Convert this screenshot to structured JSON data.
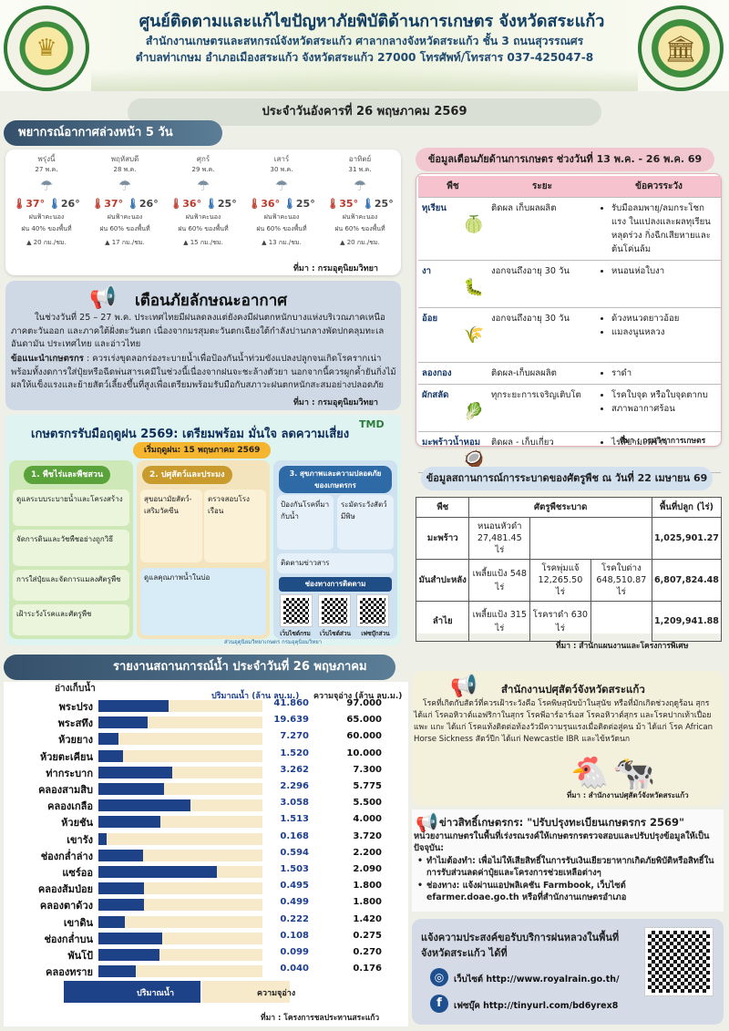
{
  "header": {
    "title": "ศูนย์ติดตามและแก้ไขปัญหาภัยพิบัติด้านการเกษตร จังหวัดสระแก้ว",
    "line1": "สำนักงานเกษตรและสหกรณ์จังหวัดสระแก้ว ศาลากลางจังหวัดสระแก้ว ชั้น 3 ถนนสุวรรณศร",
    "line2": "ตำบลท่าเกษม อำเภอเมืองสระแก้ว จังหวัดสระแก้ว 27000 โทรศัพท์/โทรสาร 037-425047-8",
    "seal_left_text": "สำนักงานเกษตรและสหกรณ์ MINISTRY OF AGRICULTURE AND COOPERATIVES",
    "date": "ประจำวันอังคารที่ 26 พฤษภาคม 2569"
  },
  "forecast": {
    "title": "พยากรณ์อากาศล่วงหน้า 5 วัน",
    "source": "ที่มา : กรมอุตุนิยมวิทยา",
    "days": [
      {
        "name": "พรุ่งนี้",
        "date": "27 พ.ค.",
        "hi": "37°",
        "lo": "26°",
        "desc1": "ฝนฟ้าคะนอง",
        "desc2": "ฝน 40% ของพื้นที่",
        "wind": "20 กม./ชม."
      },
      {
        "name": "พฤหัสบดี",
        "date": "28 พ.ค.",
        "hi": "37°",
        "lo": "26°",
        "desc1": "ฝนฟ้าคะนอง",
        "desc2": "ฝน 60% ของพื้นที่",
        "wind": "17 กม./ชม."
      },
      {
        "name": "ศุกร์",
        "date": "29 พ.ค.",
        "hi": "36°",
        "lo": "25°",
        "desc1": "ฝนฟ้าคะนอง",
        "desc2": "ฝน 60% ของพื้นที่",
        "wind": "15 กม./ชม."
      },
      {
        "name": "เสาร์",
        "date": "30 พ.ค.",
        "hi": "36°",
        "lo": "25°",
        "desc1": "ฝนฟ้าคะนอง",
        "desc2": "ฝน 60% ของพื้นที่",
        "wind": "13 กม./ชม."
      },
      {
        "name": "อาทิตย์",
        "date": "31 พ.ค.",
        "hi": "35°",
        "lo": "25°",
        "desc1": "ฝนฟ้าคะนอง",
        "desc2": "ฝน 60% ของพื้นที่",
        "wind": "20 กม./ชม."
      }
    ]
  },
  "warning": {
    "title": "เตือนภัยลักษณะอากาศ",
    "p1": "ในช่วงวันที่ 25 – 27 พ.ค. ประเทศไทยมีฝนลดลงแต่ยังคงมีฝนตกหนักบางแห่งบริเวณภาคเหนือ ภาคตะวันออก และภาคใต้ฝั่งตะวันตก เนื่องจากมรสุมตะวันตกเฉียงใต้กำลังปานกลางพัดปกคลุมทะเลอันดามัน ประเทศไทย และอ่าวไทย",
    "p2_label": "ข้อแนะนำเกษตรกร",
    "p2": " : ควรเร่งขุดลอกร่องระบายน้ำเพื่อป้องกันน้ำท่วมขังแปลงปลูกจนเกิดโรครากเน่า พร้อมทั้งงดการใส่ปุ๋ยหรือฉีดพ่นสารเคมีในช่วงนี้เนื่องจากฝนจะชะล้างตัวยา นอกจากนี้ควรผูกค้ำยันกิ่งไม้ผลให้แข็งแรงและย้ายสัตว์เลี้ยงขึ้นที่สูงเพื่อเตรียมพร้อมรับมือกับสภาวะฝนตกหนักสะสมอย่างปลอดภัย",
    "source": "ที่มา : กรมอุตุนิยมวิทยา"
  },
  "infographic": {
    "title": "เกษตรกรรับมือฤดูฝน 2569: เตรียมพร้อม มั่นใจ ลดความเสี่ยง",
    "start": "เริ่มฤดูฝน: 15 พฤษภาคม 2569",
    "s1": "1. พืชไร่และพืชสวน",
    "s2": "2. ปศุสัตว์และประมง",
    "s3": "3. สุขภาพและความปลอดภัยของเกษตรกร",
    "s1a": "ดูแลระบบระบายน้ำและโครงสร้าง",
    "s1b": "จัดการดินและวัชพืชอย่างถูกวิธี",
    "s1c": "การใส่ปุ๋ยและจัดการแมลงศัตรูพืช",
    "s1d": "เฝ้าระวังโรคและศัตรูพืช",
    "s2a": "สุขอนามัยสัตว์-เสริมวัคซีน",
    "s2b": "ตรวจสอบโรงเรือน",
    "s2c": "ดูแลคุณภาพน้ำในบ่อ",
    "s3a": "ป้องกันโรคที่มากับน้ำ",
    "s3b": "ระมัดระวังสัตว์มีพิษ",
    "s3c": "ติดตามข่าวสาร",
    "contact": "ช่องทางการติดตาม",
    "qr1": "เว็บไซต์กรม",
    "qr2": "เว็บไซต์ส่วน",
    "qr3": "เฟซบุ๊กส่วน",
    "foot": "ส่วนอุตุนิยมวิทยาเกษตร กรมอุตุนิยมวิทยา",
    "logo": "TMD"
  },
  "alert": {
    "title": "ข้อมูลเตือนภัยด้านการเกษตร ช่วงวันที่ 13 พ.ค. - 26 พ.ค. 69",
    "headers": [
      "พืช",
      "ระยะ",
      "ข้อควรระวัง"
    ],
    "rows": [
      {
        "crop": "ทุเรียน",
        "stage": "ติดผล เก็บผลผลิต",
        "cautions": [
          "รับมือลมพายุ/ลมกระโชกแรง ในแปลงและผลทุเรียนหลุดร่วง กิ่งฉีกเสียหายและต้นโค่นล้ม"
        ]
      },
      {
        "crop": "งา",
        "stage": "งอกจนถึงอายุ 30 วัน",
        "cautions": [
          "หนอนห่อใบงา"
        ]
      },
      {
        "crop": "อ้อย",
        "stage": "งอกจนถึงอายุ 30 วัน",
        "cautions": [
          "ด้วงหนวดยาวอ้อย",
          "แมลงนูนหลวง"
        ]
      },
      {
        "crop": "ลองกอง",
        "stage": "ติดผล-เก็บผลผลิต",
        "cautions": [
          "ราดำ"
        ]
      },
      {
        "crop": "ผักสลัด",
        "stage": "ทุกระยะการเจริญเติบโต",
        "cautions": [
          "โรคใบจุด หรือใบจุดตากบ",
          "สภาพอากาศร้อน"
        ]
      },
      {
        "crop": "มะพร้าวน้ำหอม",
        "stage": "ติดผล - เก็บเกี่ยว",
        "cautions": [
          "ไรสี่ขามะพร้าว"
        ]
      }
    ],
    "source": "ที่มา : กรมวิชาการเกษตร"
  },
  "pest": {
    "title": "ข้อมูลสถานการณ์การระบาดของศัตรูพืช ณ วันที่ 22 เมษายน 69",
    "headers": [
      "พืช",
      "ศัตรูพืชระบาด",
      "พื้นที่ปลูก (ไร่)"
    ],
    "rows": [
      {
        "crop": "มะพร้าว",
        "pests": [
          "หนอนหัวดำ 27,481.45 ไร่"
        ],
        "area": "1,025,901.27"
      },
      {
        "crop": "มันสำปะหลัง",
        "pests": [
          "เพลี้ยแป้ง 548 ไร่",
          "โรคพุ่มแจ้ 12,265.50 ไร่",
          "โรคใบด่าง 648,510.87 ไร่"
        ],
        "area": "6,807,824.48"
      },
      {
        "crop": "ลำไย",
        "pests": [
          "เพลี้ยแป้ง 315 ไร่",
          "โรคราดำ 630 ไร่"
        ],
        "area": "1,209,941.88"
      }
    ],
    "source": "ที่มา : สำนักแผนงานและโครงการพิเศษ"
  },
  "water": {
    "title": "รายงานสถานการณ์น้ำ ประจำวันที่ 26 พฤษภาคม 2569",
    "col_name": "อ่างเก็บน้ำ",
    "col_qty": "ปริมาณน้ำ (ล้าน ลบ.ม.)",
    "col_cap": "ความจุอ่าง (ล้าน ลบ.ม.)",
    "legend_qty": "ปริมาณน้ำ",
    "legend_cap": "ความจุอ่าง",
    "source": "ที่มา : โครงการชลประทานสระแก้ว",
    "rows": [
      {
        "name": "พระปรง",
        "qty": "41.860",
        "cap": "97.000",
        "pct": 0.43
      },
      {
        "name": "พระสทึง",
        "qty": "19.639",
        "cap": "65.000",
        "pct": 0.3
      },
      {
        "name": "ห้วยยาง",
        "qty": "7.270",
        "cap": "60.000",
        "pct": 0.12
      },
      {
        "name": "ห้วยตะเคียน",
        "qty": "1.520",
        "cap": "10.000",
        "pct": 0.15
      },
      {
        "name": "ท่ากระบาก",
        "qty": "3.262",
        "cap": "7.300",
        "pct": 0.45
      },
      {
        "name": "คลองสามสิบ",
        "qty": "2.296",
        "cap": "5.775",
        "pct": 0.4
      },
      {
        "name": "คลองเกลือ",
        "qty": "3.058",
        "cap": "5.500",
        "pct": 0.56
      },
      {
        "name": "ห้วยชัน",
        "qty": "1.513",
        "cap": "4.000",
        "pct": 0.38
      },
      {
        "name": "เขารัง",
        "qty": "0.168",
        "cap": "3.720",
        "pct": 0.05
      },
      {
        "name": "ช่องกล่ำล่าง",
        "qty": "0.594",
        "cap": "2.200",
        "pct": 0.27
      },
      {
        "name": "แซร์ออ",
        "qty": "1.503",
        "cap": "2.090",
        "pct": 0.72
      },
      {
        "name": "คลองส้มป่อย",
        "qty": "0.495",
        "cap": "1.800",
        "pct": 0.28
      },
      {
        "name": "คลองตาด้วง",
        "qty": "0.499",
        "cap": "1.800",
        "pct": 0.28
      },
      {
        "name": "เขาดิน",
        "qty": "0.222",
        "cap": "1.420",
        "pct": 0.16
      },
      {
        "name": "ช่องกล่ำบน",
        "qty": "0.108",
        "cap": "0.275",
        "pct": 0.39
      },
      {
        "name": "พันโป้",
        "qty": "0.099",
        "cap": "0.270",
        "pct": 0.37
      },
      {
        "name": "คลองทราย",
        "qty": "0.040",
        "cap": "0.176",
        "pct": 0.23
      }
    ]
  },
  "livestock": {
    "title": "สำนักงานปศุสัตว์จังหวัดสระแก้ว",
    "body": "โรคที่เกิดกับสัตว์ที่ควรเฝ้าระวังคือ โรคพิษสุนัขบ้าในสุนัข หรือที่มักเกิดช่วงฤดูร้อน สุกร ได้แก่ โรคอหิวาต์แอฟริกาในสุกร โรคพีอาร์อาร์เอส โรคอหิวาต์สุกร และโรคปากเท้าเปื่อย แพะ แกะ ได้แก่ โรคแท้งติดต่อท้องวัวมีความรุนแรงเมื่อติดต่อสู่คน ม้า ได้แก่ โรค African Horse Sickness สัตว์ปีก ได้แก่ Newcastle IBR และไข้หวัดนก",
    "source": "ที่มา : สำนักงานปศุสัตว์จังหวัดสระแก้ว"
  },
  "news": {
    "title": "ข่าวสิทธิ์เกษตรกร: \"ปรับปรุงทะเบียนเกษตรกร 2569\"",
    "intro": "หน่วยงานเกษตรในพื้นที่เร่งรณรงค์ให้เกษตรกรตรวจสอบและปรับปรุงข้อมูลให้เป็นปัจจุบัน:",
    "b1": "ทำไมต้องทำ: เพื่อไม่ให้เสียสิทธิ์ในการรับเงินเยียวยาหากเกิดภัยพิบัติหรือสิทธิ์ในการรับส่วนลดค่าปุ๋ยและโครงการช่วยเหลือต่างๆ",
    "b2": "ช่องทาง: แจ้งผ่านแอปพลิเคชัน Farmbook, เว็บไซต์ efarmer.doae.go.th หรือที่สำนักงานเกษตรอำเภอ"
  },
  "rain": {
    "title": "แจ้งความประสงค์ขอรับบริการฝนหลวงในพื้นที่จังหวัดสระแก้ว ได้ที่",
    "web": "เว็บไซต์ http://www.royalrain.go.th/",
    "fb": "เฟซบุ๊ค http://tinyurl.com/bd6yrex8"
  },
  "colors": {
    "navy": "#1e4287",
    "cream": "#f7eacb",
    "pink": "#f2c6cf",
    "pill": "#3f5d78"
  }
}
